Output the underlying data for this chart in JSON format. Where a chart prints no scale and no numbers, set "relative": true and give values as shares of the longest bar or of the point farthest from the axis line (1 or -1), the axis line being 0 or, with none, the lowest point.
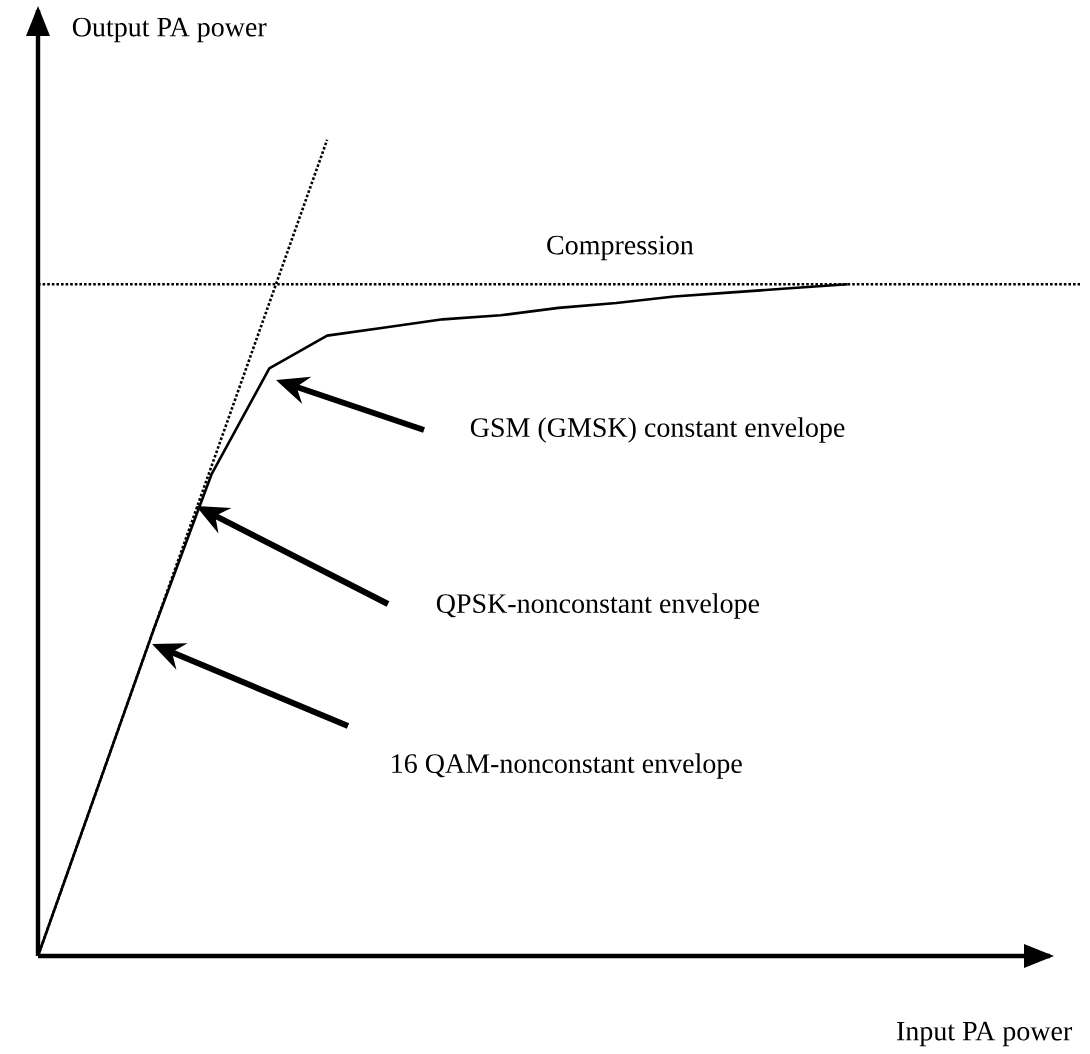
{
  "chart_data": {
    "type": "line",
    "relative": true,
    "xlabel": "Input PA power",
    "ylabel": "Output PA power",
    "categories": [
      null,
      null,
      null,
      null,
      null,
      null,
      null,
      null,
      null,
      null,
      null,
      null,
      null,
      null,
      null,
      null,
      null,
      null
    ],
    "series": [
      {
        "color": "#000000",
        "line_style": "solid",
        "values": [
          0,
          0.2,
          0.4,
          0.59,
          0.72,
          0.76,
          0.77,
          0.78,
          0.785,
          0.794,
          0.8,
          0.808,
          0.813,
          0.818,
          0.823,
          null,
          null,
          null
        ]
      },
      {
        "color": "#000000",
        "line_style": "dotted",
        "values": [
          0,
          0.2,
          0.4,
          0.6,
          0.8,
          1.0,
          null,
          null,
          null,
          null,
          null,
          null,
          null,
          null,
          null,
          null,
          null,
          null
        ]
      }
    ],
    "ref_lines": [
      {
        "axis": "y",
        "value": 0.823,
        "label": "Compression",
        "line_style": "dotted",
        "color": "#000000"
      }
    ],
    "annotations": [
      "GSM (GMSK) constant envelope",
      "QPSK-nonconstant envelope",
      "16 QAM-nonconstant envelope"
    ]
  }
}
